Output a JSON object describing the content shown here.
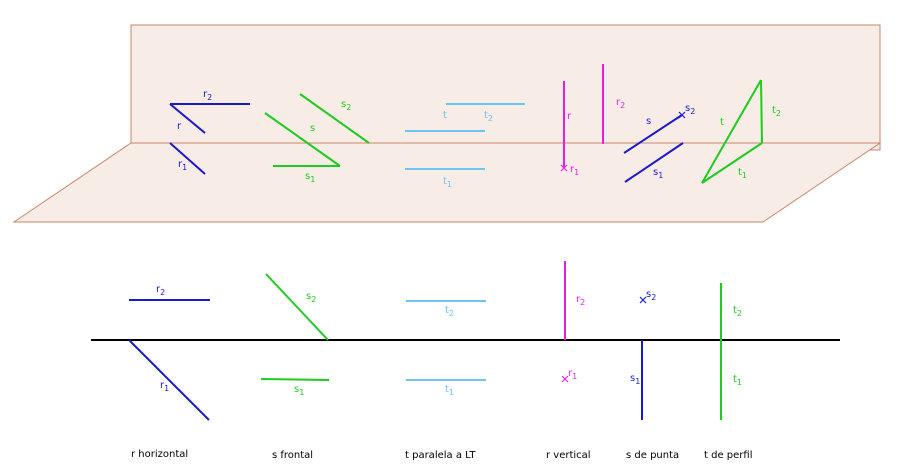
{
  "colors": {
    "plane_fill": "#f7ece6",
    "plane_stroke": "#c8866a",
    "blue": "#1a1acc",
    "green": "#1ecb1e",
    "light_blue": "#6ec4f0",
    "magenta": "#e61ee6",
    "ground_line": "#000000"
  },
  "perspective": {
    "r": {
      "r2": {
        "t": "r",
        "s": "2"
      },
      "r": {
        "t": "r",
        "s": ""
      },
      "r1": {
        "t": "r",
        "s": "1"
      }
    },
    "s": {
      "s2": {
        "t": "s",
        "s": "2"
      },
      "s": {
        "t": "s",
        "s": ""
      },
      "s1": {
        "t": "s",
        "s": "1"
      }
    },
    "t": {
      "t": {
        "t": "t",
        "s": ""
      },
      "t2": {
        "t": "t",
        "s": "2"
      },
      "t1": {
        "t": "t",
        "s": "1"
      }
    },
    "rv": {
      "r": {
        "t": "r",
        "s": ""
      },
      "r2": {
        "t": "r",
        "s": "2"
      },
      "r1": {
        "t": "r",
        "s": "1"
      }
    },
    "sp": {
      "s": {
        "t": "s",
        "s": ""
      },
      "s2": {
        "t": "s",
        "s": "2"
      },
      "s1": {
        "t": "s",
        "s": "1"
      }
    },
    "tp": {
      "t": {
        "t": "t",
        "s": ""
      },
      "t2": {
        "t": "t",
        "s": "2"
      },
      "t1": {
        "t": "t",
        "s": "1"
      }
    }
  },
  "projection": {
    "r": {
      "r2": {
        "t": "r",
        "s": "2"
      },
      "r1": {
        "t": "r",
        "s": "1"
      }
    },
    "s": {
      "s2": {
        "t": "s",
        "s": "2"
      },
      "s1": {
        "t": "s",
        "s": "1"
      }
    },
    "t": {
      "t2": {
        "t": "t",
        "s": "2"
      },
      "t1": {
        "t": "t",
        "s": "1"
      }
    },
    "rv": {
      "r2": {
        "t": "r",
        "s": "2"
      },
      "r1": {
        "t": "r",
        "s": "1"
      }
    },
    "sp": {
      "s2": {
        "t": "s",
        "s": "2"
      },
      "s1": {
        "t": "s",
        "s": "1"
      }
    },
    "tp": {
      "t2": {
        "t": "t",
        "s": "2"
      },
      "t1": {
        "t": "t",
        "s": "1"
      }
    }
  },
  "captions": {
    "r_horizontal": "r horizontal",
    "s_frontal": "s frontal",
    "t_paralela": "t paralela a LT",
    "r_vertical": "r vertical",
    "s_punta": "s de punta",
    "t_perfil": "t  de perfil"
  }
}
